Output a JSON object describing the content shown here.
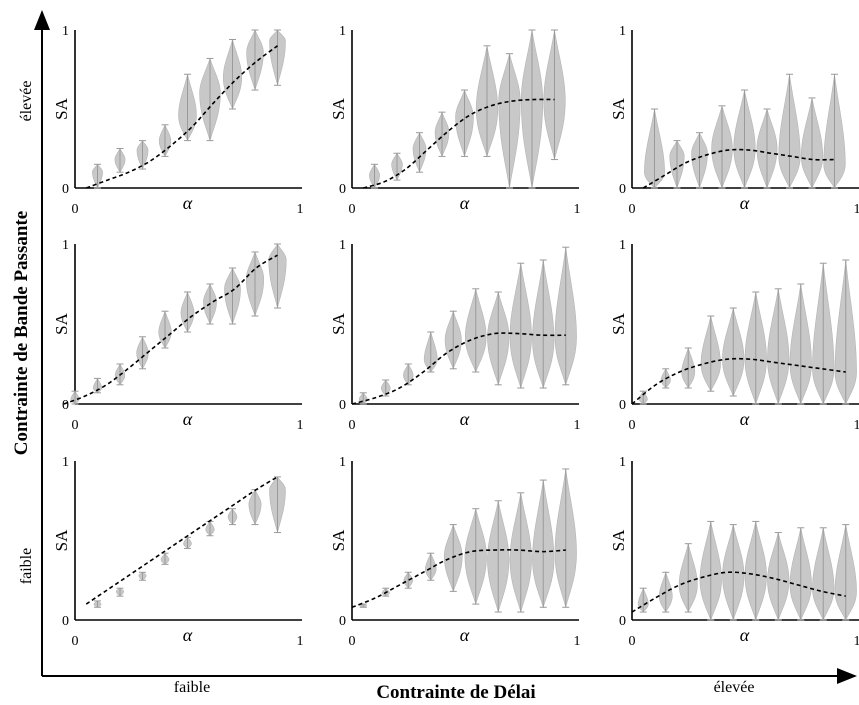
{
  "figure": {
    "x_axis_title": "Contrainte de Délai",
    "y_axis_title": "Contrainte de Bande Passante",
    "x_low": "faible",
    "x_high": "élevée",
    "y_low": "faible",
    "y_high": "élevée",
    "violin_color": "#c8c8c8",
    "line_color": "#000000"
  },
  "chart_data": [
    {
      "type": "violin",
      "row": "high",
      "col": "low",
      "xlabel": "α",
      "ylabel": "SA",
      "xlim": [
        0,
        1
      ],
      "ylim": [
        0,
        1
      ],
      "xticks": [
        "0",
        "1"
      ],
      "yticks": [
        "0",
        "1"
      ],
      "x": [
        0.1,
        0.2,
        0.3,
        0.4,
        0.5,
        0.6,
        0.7,
        0.8,
        0.9
      ],
      "violins": [
        {
          "lo": 0.0,
          "hi": 0.15,
          "med": 0.1
        },
        {
          "lo": 0.1,
          "hi": 0.25,
          "med": 0.18
        },
        {
          "lo": 0.12,
          "hi": 0.3,
          "med": 0.24
        },
        {
          "lo": 0.2,
          "hi": 0.4,
          "med": 0.3
        },
        {
          "lo": 0.3,
          "hi": 0.72,
          "med": 0.46
        },
        {
          "lo": 0.3,
          "hi": 0.82,
          "med": 0.6
        },
        {
          "lo": 0.5,
          "hi": 0.94,
          "med": 0.7
        },
        {
          "lo": 0.62,
          "hi": 1.0,
          "med": 0.86
        },
        {
          "lo": 0.65,
          "hi": 1.0,
          "med": 0.93
        }
      ],
      "trend": [
        0.0,
        0.05,
        0.1,
        0.17,
        0.27,
        0.39,
        0.54,
        0.68,
        0.8,
        0.9
      ]
    },
    {
      "type": "violin",
      "row": "high",
      "col": "mid",
      "xlabel": "α",
      "ylabel": "SA",
      "xlim": [
        0,
        1
      ],
      "ylim": [
        0,
        1
      ],
      "xticks": [
        "0",
        "1"
      ],
      "yticks": [
        "0",
        "1"
      ],
      "x": [
        0.1,
        0.2,
        0.3,
        0.4,
        0.5,
        0.6,
        0.7,
        0.8,
        0.9
      ],
      "violins": [
        {
          "lo": 0.0,
          "hi": 0.15,
          "med": 0.08
        },
        {
          "lo": 0.05,
          "hi": 0.22,
          "med": 0.15
        },
        {
          "lo": 0.1,
          "hi": 0.35,
          "med": 0.25
        },
        {
          "lo": 0.2,
          "hi": 0.48,
          "med": 0.35
        },
        {
          "lo": 0.2,
          "hi": 0.62,
          "med": 0.45
        },
        {
          "lo": 0.2,
          "hi": 0.9,
          "med": 0.5
        },
        {
          "lo": 0.0,
          "hi": 0.85,
          "med": 0.55
        },
        {
          "lo": 0.0,
          "hi": 1.0,
          "med": 0.55
        },
        {
          "lo": 0.18,
          "hi": 1.0,
          "med": 0.55
        }
      ],
      "trend": [
        0.0,
        0.04,
        0.12,
        0.24,
        0.36,
        0.46,
        0.52,
        0.55,
        0.56,
        0.56
      ]
    },
    {
      "type": "violin",
      "row": "high",
      "col": "high",
      "xlabel": "α",
      "ylabel": "SA",
      "xlim": [
        0,
        1
      ],
      "ylim": [
        0,
        1
      ],
      "xticks": [
        "0",
        "1"
      ],
      "yticks": [
        "0",
        "1"
      ],
      "x": [
        0.1,
        0.2,
        0.3,
        0.4,
        0.5,
        0.6,
        0.7,
        0.8,
        0.9
      ],
      "violins": [
        {
          "lo": 0.0,
          "hi": 0.5,
          "med": 0.1
        },
        {
          "lo": 0.0,
          "hi": 0.3,
          "med": 0.2
        },
        {
          "lo": 0.0,
          "hi": 0.35,
          "med": 0.22
        },
        {
          "lo": 0.0,
          "hi": 0.52,
          "med": 0.25
        },
        {
          "lo": 0.0,
          "hi": 0.62,
          "med": 0.25
        },
        {
          "lo": 0.0,
          "hi": 0.5,
          "med": 0.25
        },
        {
          "lo": 0.0,
          "hi": 0.72,
          "med": 0.2
        },
        {
          "lo": 0.0,
          "hi": 0.57,
          "med": 0.2
        },
        {
          "lo": 0.0,
          "hi": 0.72,
          "med": 0.15
        }
      ],
      "trend": [
        0.0,
        0.08,
        0.16,
        0.21,
        0.24,
        0.24,
        0.22,
        0.2,
        0.18,
        0.18
      ]
    },
    {
      "type": "violin",
      "row": "mid",
      "col": "low",
      "xlabel": "α",
      "ylabel": "SA",
      "xlim": [
        0,
        1
      ],
      "ylim": [
        0,
        1
      ],
      "xticks": [
        "0",
        "1"
      ],
      "yticks": [
        "0",
        "1"
      ],
      "x": [
        0.0,
        0.1,
        0.2,
        0.3,
        0.4,
        0.5,
        0.6,
        0.7,
        0.8,
        0.9
      ],
      "violins": [
        {
          "lo": 0.0,
          "hi": 0.08,
          "med": 0.03
        },
        {
          "lo": 0.07,
          "hi": 0.16,
          "med": 0.1
        },
        {
          "lo": 0.12,
          "hi": 0.25,
          "med": 0.18
        },
        {
          "lo": 0.22,
          "hi": 0.42,
          "med": 0.32
        },
        {
          "lo": 0.35,
          "hi": 0.58,
          "med": 0.45
        },
        {
          "lo": 0.45,
          "hi": 0.7,
          "med": 0.57
        },
        {
          "lo": 0.5,
          "hi": 0.75,
          "med": 0.64
        },
        {
          "lo": 0.5,
          "hi": 0.85,
          "med": 0.72
        },
        {
          "lo": 0.55,
          "hi": 0.95,
          "med": 0.78
        },
        {
          "lo": 0.6,
          "hi": 1.0,
          "med": 0.9
        }
      ],
      "trend": [
        0.0,
        0.05,
        0.12,
        0.22,
        0.33,
        0.44,
        0.55,
        0.64,
        0.72,
        0.85,
        0.93
      ]
    },
    {
      "type": "violin",
      "row": "mid",
      "col": "mid",
      "xlabel": "α",
      "ylabel": "SA",
      "xlim": [
        0,
        1
      ],
      "ylim": [
        0,
        1
      ],
      "xticks": [
        "0",
        "1"
      ],
      "yticks": [
        "0",
        "1"
      ],
      "x": [
        0.05,
        0.15,
        0.25,
        0.35,
        0.45,
        0.55,
        0.65,
        0.75,
        0.85,
        0.95
      ],
      "violins": [
        {
          "lo": 0.0,
          "hi": 0.07,
          "med": 0.03
        },
        {
          "lo": 0.05,
          "hi": 0.15,
          "med": 0.1
        },
        {
          "lo": 0.12,
          "hi": 0.25,
          "med": 0.18
        },
        {
          "lo": 0.2,
          "hi": 0.45,
          "med": 0.28
        },
        {
          "lo": 0.22,
          "hi": 0.58,
          "med": 0.4
        },
        {
          "lo": 0.2,
          "hi": 0.72,
          "med": 0.42
        },
        {
          "lo": 0.12,
          "hi": 0.7,
          "med": 0.42
        },
        {
          "lo": 0.1,
          "hi": 0.88,
          "med": 0.42
        },
        {
          "lo": 0.1,
          "hi": 0.9,
          "med": 0.4
        },
        {
          "lo": 0.12,
          "hi": 0.98,
          "med": 0.42
        }
      ],
      "trend": [
        0.0,
        0.04,
        0.1,
        0.2,
        0.32,
        0.4,
        0.44,
        0.44,
        0.43,
        0.43
      ]
    },
    {
      "type": "violin",
      "row": "mid",
      "col": "high",
      "xlabel": "α",
      "ylabel": "SA",
      "xlim": [
        0,
        1
      ],
      "ylim": [
        0,
        1
      ],
      "xticks": [
        "0",
        "1"
      ],
      "yticks": [
        "0",
        "1"
      ],
      "x": [
        0.05,
        0.15,
        0.25,
        0.35,
        0.45,
        0.55,
        0.65,
        0.75,
        0.85,
        0.95
      ],
      "violins": [
        {
          "lo": 0.0,
          "hi": 0.08,
          "med": 0.03
        },
        {
          "lo": 0.1,
          "hi": 0.22,
          "med": 0.15
        },
        {
          "lo": 0.1,
          "hi": 0.35,
          "med": 0.2
        },
        {
          "lo": 0.08,
          "hi": 0.55,
          "med": 0.25
        },
        {
          "lo": 0.05,
          "hi": 0.6,
          "med": 0.28
        },
        {
          "lo": 0.0,
          "hi": 0.7,
          "med": 0.28
        },
        {
          "lo": 0.0,
          "hi": 0.72,
          "med": 0.28
        },
        {
          "lo": 0.0,
          "hi": 0.75,
          "med": 0.25
        },
        {
          "lo": 0.0,
          "hi": 0.88,
          "med": 0.22
        },
        {
          "lo": 0.0,
          "hi": 0.9,
          "med": 0.2
        }
      ],
      "trend": [
        0.0,
        0.12,
        0.2,
        0.25,
        0.28,
        0.28,
        0.26,
        0.24,
        0.22,
        0.2
      ]
    },
    {
      "type": "violin",
      "row": "low",
      "col": "low",
      "xlabel": "α",
      "ylabel": "SA",
      "xlim": [
        0,
        1
      ],
      "ylim": [
        0,
        1
      ],
      "xticks": [
        "0",
        "1"
      ],
      "yticks": [
        "0",
        "1"
      ],
      "x": [
        0.1,
        0.2,
        0.3,
        0.4,
        0.5,
        0.6,
        0.7,
        0.8,
        0.9
      ],
      "violins": [
        {
          "lo": 0.08,
          "hi": 0.12,
          "med": 0.1
        },
        {
          "lo": 0.15,
          "hi": 0.2,
          "med": 0.18
        },
        {
          "lo": 0.25,
          "hi": 0.3,
          "med": 0.28
        },
        {
          "lo": 0.35,
          "hi": 0.42,
          "med": 0.38
        },
        {
          "lo": 0.45,
          "hi": 0.52,
          "med": 0.48
        },
        {
          "lo": 0.53,
          "hi": 0.62,
          "med": 0.57
        },
        {
          "lo": 0.6,
          "hi": 0.7,
          "med": 0.65
        },
        {
          "lo": 0.6,
          "hi": 0.82,
          "med": 0.73
        },
        {
          "lo": 0.55,
          "hi": 0.9,
          "med": 0.82
        }
      ],
      "trend": [
        0.1,
        0.19,
        0.28,
        0.37,
        0.46,
        0.55,
        0.64,
        0.73,
        0.82,
        0.9
      ]
    },
    {
      "type": "violin",
      "row": "low",
      "col": "mid",
      "xlabel": "α",
      "ylabel": "SA",
      "xlim": [
        0,
        1
      ],
      "ylim": [
        0,
        1
      ],
      "xticks": [
        "0",
        "1"
      ],
      "yticks": [
        "0",
        "1"
      ],
      "x": [
        0.05,
        0.15,
        0.25,
        0.35,
        0.45,
        0.55,
        0.65,
        0.75,
        0.85,
        0.95
      ],
      "violins": [
        {
          "lo": 0.08,
          "hi": 0.1,
          "med": 0.09
        },
        {
          "lo": 0.15,
          "hi": 0.2,
          "med": 0.17
        },
        {
          "lo": 0.2,
          "hi": 0.3,
          "med": 0.25
        },
        {
          "lo": 0.25,
          "hi": 0.42,
          "med": 0.32
        },
        {
          "lo": 0.18,
          "hi": 0.6,
          "med": 0.4
        },
        {
          "lo": 0.1,
          "hi": 0.7,
          "med": 0.4
        },
        {
          "lo": 0.05,
          "hi": 0.75,
          "med": 0.38
        },
        {
          "lo": 0.05,
          "hi": 0.8,
          "med": 0.38
        },
        {
          "lo": 0.08,
          "hi": 0.88,
          "med": 0.38
        },
        {
          "lo": 0.08,
          "hi": 0.95,
          "med": 0.42
        }
      ],
      "trend": [
        0.08,
        0.14,
        0.22,
        0.3,
        0.38,
        0.43,
        0.44,
        0.44,
        0.43,
        0.44
      ]
    },
    {
      "type": "violin",
      "row": "low",
      "col": "high",
      "xlabel": "α",
      "ylabel": "SA",
      "xlim": [
        0,
        1
      ],
      "ylim": [
        0,
        1
      ],
      "xticks": [
        "0",
        "1"
      ],
      "yticks": [
        "0",
        "1"
      ],
      "x": [
        0.05,
        0.15,
        0.25,
        0.35,
        0.45,
        0.55,
        0.65,
        0.75,
        0.85,
        0.95
      ],
      "violins": [
        {
          "lo": 0.05,
          "hi": 0.2,
          "med": 0.1
        },
        {
          "lo": 0.05,
          "hi": 0.3,
          "med": 0.15
        },
        {
          "lo": 0.05,
          "hi": 0.48,
          "med": 0.22
        },
        {
          "lo": 0.0,
          "hi": 0.62,
          "med": 0.25
        },
        {
          "lo": 0.0,
          "hi": 0.6,
          "med": 0.28
        },
        {
          "lo": 0.0,
          "hi": 0.62,
          "med": 0.28
        },
        {
          "lo": 0.0,
          "hi": 0.55,
          "med": 0.25
        },
        {
          "lo": 0.0,
          "hi": 0.58,
          "med": 0.22
        },
        {
          "lo": 0.0,
          "hi": 0.58,
          "med": 0.2
        },
        {
          "lo": 0.0,
          "hi": 0.6,
          "med": 0.18
        }
      ],
      "trend": [
        0.05,
        0.14,
        0.22,
        0.27,
        0.3,
        0.29,
        0.26,
        0.22,
        0.18,
        0.15
      ]
    }
  ]
}
